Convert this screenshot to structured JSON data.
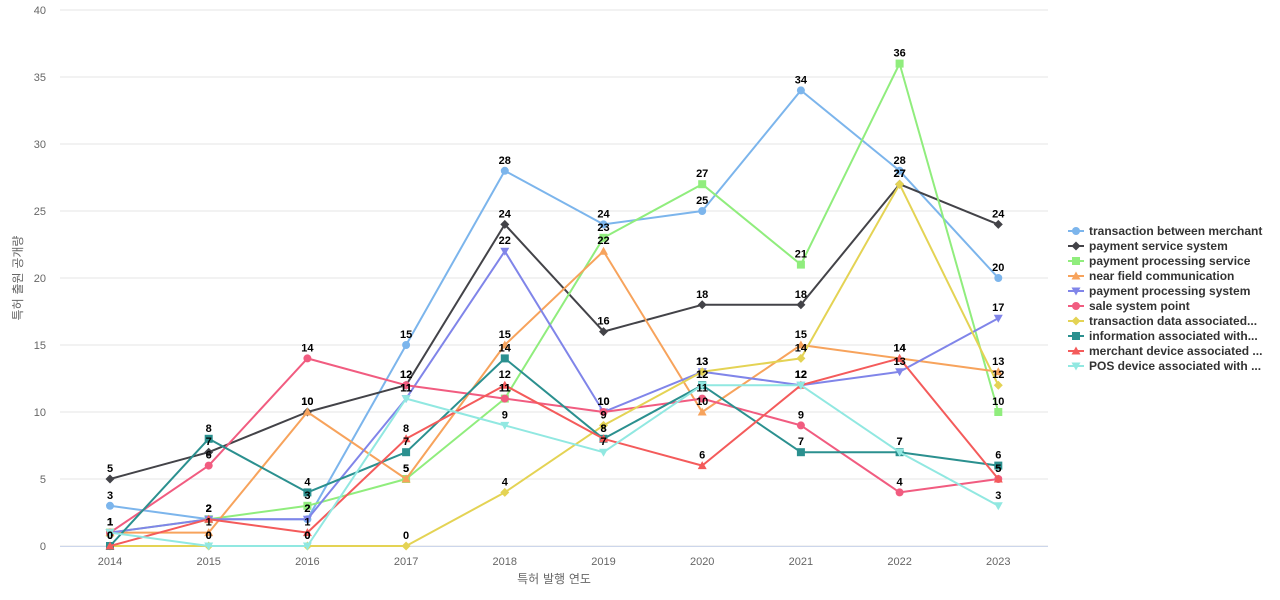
{
  "chart_data": {
    "type": "line",
    "title": "",
    "xlabel": "특허 발행 연도",
    "ylabel": "특허 출원 공개량",
    "x": [
      "2014",
      "2015",
      "2016",
      "2017",
      "2018",
      "2019",
      "2020",
      "2021",
      "2022",
      "2023"
    ],
    "ylim": [
      0,
      40
    ],
    "yticks": [
      0,
      5,
      10,
      15,
      20,
      25,
      30,
      35,
      40
    ],
    "grid": true,
    "legend_position": "right",
    "series": [
      {
        "name": "transaction between merchant",
        "color": "#7cb5ec",
        "marker": "circle",
        "values": [
          3,
          2,
          2,
          15,
          28,
          24,
          25,
          34,
          28,
          20
        ]
      },
      {
        "name": "payment service system",
        "color": "#434348",
        "marker": "diamond",
        "values": [
          5,
          7,
          10,
          12,
          24,
          16,
          18,
          18,
          27,
          24
        ]
      },
      {
        "name": "payment processing service",
        "color": "#90ed7d",
        "marker": "square",
        "values": [
          1,
          2,
          3,
          5,
          11,
          23,
          27,
          21,
          36,
          10
        ]
      },
      {
        "name": "near field communication",
        "color": "#f7a35c",
        "marker": "triangle",
        "values": [
          1,
          1,
          10,
          5,
          15,
          22,
          10,
          15,
          14,
          13
        ]
      },
      {
        "name": "payment processing system",
        "color": "#8085e9",
        "marker": "triangle-down",
        "values": [
          1,
          2,
          2,
          11,
          22,
          10,
          13,
          12,
          13,
          17
        ]
      },
      {
        "name": "sale system point",
        "color": "#f15c80",
        "marker": "circle",
        "values": [
          1,
          6,
          14,
          12,
          11,
          10,
          11,
          9,
          4,
          5
        ]
      },
      {
        "name": "transaction data associated...",
        "color": "#e4d354",
        "marker": "diamond",
        "values": [
          0,
          0,
          0,
          0,
          4,
          9,
          13,
          14,
          27,
          12
        ]
      },
      {
        "name": "information associated with...",
        "color": "#2b908f",
        "marker": "square",
        "values": [
          0,
          8,
          4,
          7,
          14,
          8,
          12,
          7,
          7,
          6
        ]
      },
      {
        "name": "merchant device associated ...",
        "color": "#f45b5b",
        "marker": "triangle",
        "values": [
          0,
          2,
          1,
          8,
          12,
          8,
          6,
          12,
          14,
          5
        ]
      },
      {
        "name": "POS device associated with ...",
        "color": "#91e8e1",
        "marker": "triangle-down",
        "values": [
          1,
          0,
          0,
          11,
          9,
          7,
          12,
          12,
          7,
          3
        ]
      }
    ]
  }
}
